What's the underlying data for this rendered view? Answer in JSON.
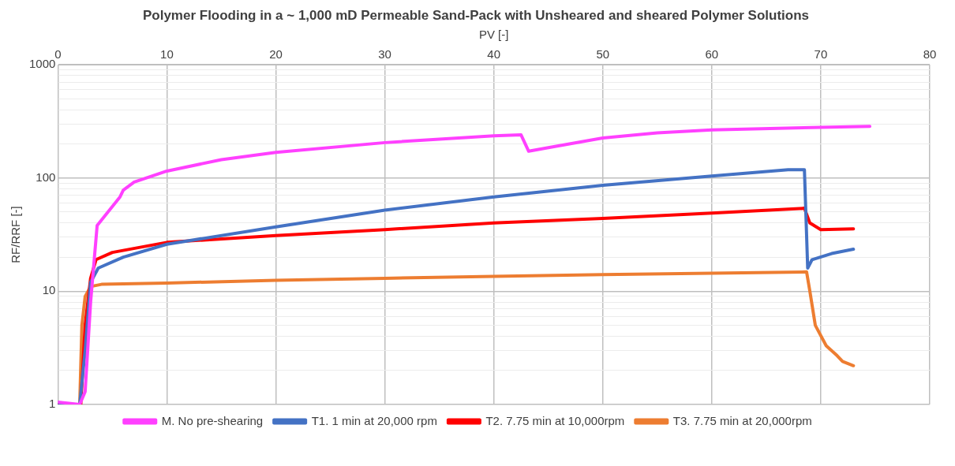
{
  "chart_data": {
    "type": "line",
    "title": "Polymer Flooding in a ~ 1,000 mD Permeable Sand-Pack with Unsheared and sheared Polymer Solutions",
    "xlabel": "PV [-]",
    "ylabel": "RF/RRF [-]",
    "log": "y",
    "grid": true,
    "legend": "bottom",
    "marker": "none",
    "line_style": "solid",
    "xlim": [
      0,
      80
    ],
    "xticks": [
      0,
      10,
      20,
      30,
      40,
      50,
      60,
      70,
      80
    ],
    "ylim": [
      1,
      1000
    ],
    "yticks": [
      1,
      {
        "value": 2,
        "label": null
      },
      {
        "value": 3,
        "label": null
      },
      {
        "value": 4,
        "label": null
      },
      {
        "value": 5,
        "label": null
      },
      {
        "value": 6,
        "label": null
      },
      {
        "value": 7,
        "label": null
      },
      {
        "value": 8,
        "label": null
      },
      {
        "value": 9,
        "label": null
      },
      10,
      {
        "value": 20,
        "label": null
      },
      {
        "value": 30,
        "label": null
      },
      {
        "value": 40,
        "label": null
      },
      {
        "value": 50,
        "label": null
      },
      {
        "value": 60,
        "label": null
      },
      {
        "value": 70,
        "label": null
      },
      {
        "value": 80,
        "label": null
      },
      {
        "value": 90,
        "label": null
      },
      100,
      {
        "value": 200,
        "label": null
      },
      {
        "value": 300,
        "label": null
      },
      {
        "value": 400,
        "label": null
      },
      {
        "value": 500,
        "label": null
      },
      {
        "value": 600,
        "label": null
      },
      {
        "value": 700,
        "label": null
      },
      {
        "value": 800,
        "label": null
      },
      {
        "value": 900,
        "label": null
      },
      1000
    ],
    "series": [
      {
        "name": "M. No pre-shearing",
        "color": "#ff40ff",
        "x": [
          0,
          2,
          2.5,
          3,
          3.6,
          5.7,
          6,
          7,
          10,
          15,
          20,
          30,
          40,
          42.5,
          43.2,
          45,
          50,
          55,
          60,
          70,
          74.5
        ],
        "values": [
          1.05,
          1,
          1.3,
          8,
          38,
          68,
          78,
          92,
          115,
          145,
          168,
          205,
          235,
          240,
          172,
          185,
          225,
          250,
          265,
          280,
          285
        ]
      },
      {
        "name": "T1. 1 min at 20,000 rpm",
        "color": "#4472c4",
        "x": [
          0,
          2,
          2.5,
          3,
          3.7,
          6,
          10,
          20,
          30,
          40,
          50,
          60,
          67,
          68.5,
          68.8,
          69.2,
          71,
          73
        ],
        "values": [
          1,
          1,
          3,
          12,
          16,
          20,
          26,
          37,
          52,
          68,
          86,
          104,
          118,
          118,
          16,
          19,
          21.5,
          23.5
        ]
      },
      {
        "name": "T2. 7.75 min at 10,000rpm",
        "color": "#ff0000",
        "x": [
          0,
          2.1,
          2.5,
          3,
          3.5,
          5,
          10,
          20,
          30,
          40,
          50,
          60,
          68.5,
          69,
          70,
          73
        ],
        "values": [
          1,
          1,
          5,
          13,
          19,
          22,
          27,
          31,
          35,
          40,
          44,
          49,
          54,
          40,
          35,
          35.5
        ]
      },
      {
        "name": "T3. 7.75 min at 20,000rpm",
        "color": "#ed7d31",
        "x": [
          0,
          2,
          2.2,
          2.5,
          3,
          4,
          10,
          20,
          30,
          40,
          50,
          60,
          68.7,
          69,
          69.5,
          70.5,
          71.5,
          72,
          73
        ],
        "values": [
          1,
          1,
          5,
          9,
          11,
          11.5,
          11.8,
          12.5,
          13,
          13.5,
          14,
          14.4,
          14.8,
          10,
          5,
          3.3,
          2.7,
          2.4,
          2.2
        ]
      }
    ]
  }
}
